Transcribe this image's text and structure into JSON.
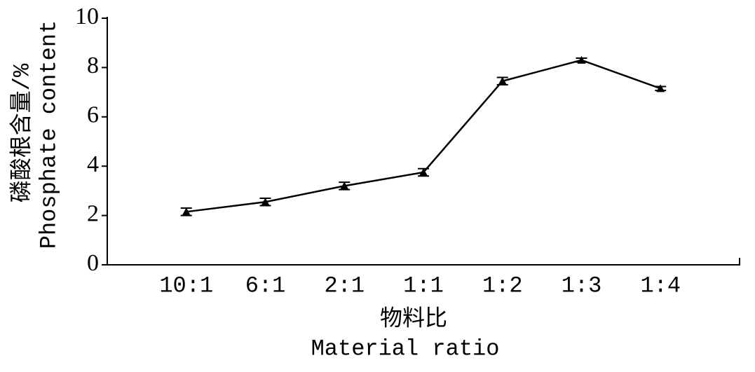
{
  "chart_data": {
    "type": "line",
    "x_label": [
      "物料比",
      "Material ratio"
    ],
    "y_label": [
      "磷酸根含量/%",
      "Phosphate content"
    ],
    "categories": [
      "10:1",
      "6:1",
      "2:1",
      "1:1",
      "1:2",
      "1:3",
      "1:4"
    ],
    "values": [
      2.15,
      2.55,
      3.2,
      3.75,
      7.45,
      8.3,
      7.15
    ],
    "errors": [
      0.15,
      0.15,
      0.15,
      0.15,
      0.15,
      0.08,
      0.08
    ],
    "color": "#000000",
    "ylim": [
      0,
      10
    ],
    "yticks": [
      0,
      2,
      4,
      6,
      8,
      10
    ],
    "grid": false
  }
}
